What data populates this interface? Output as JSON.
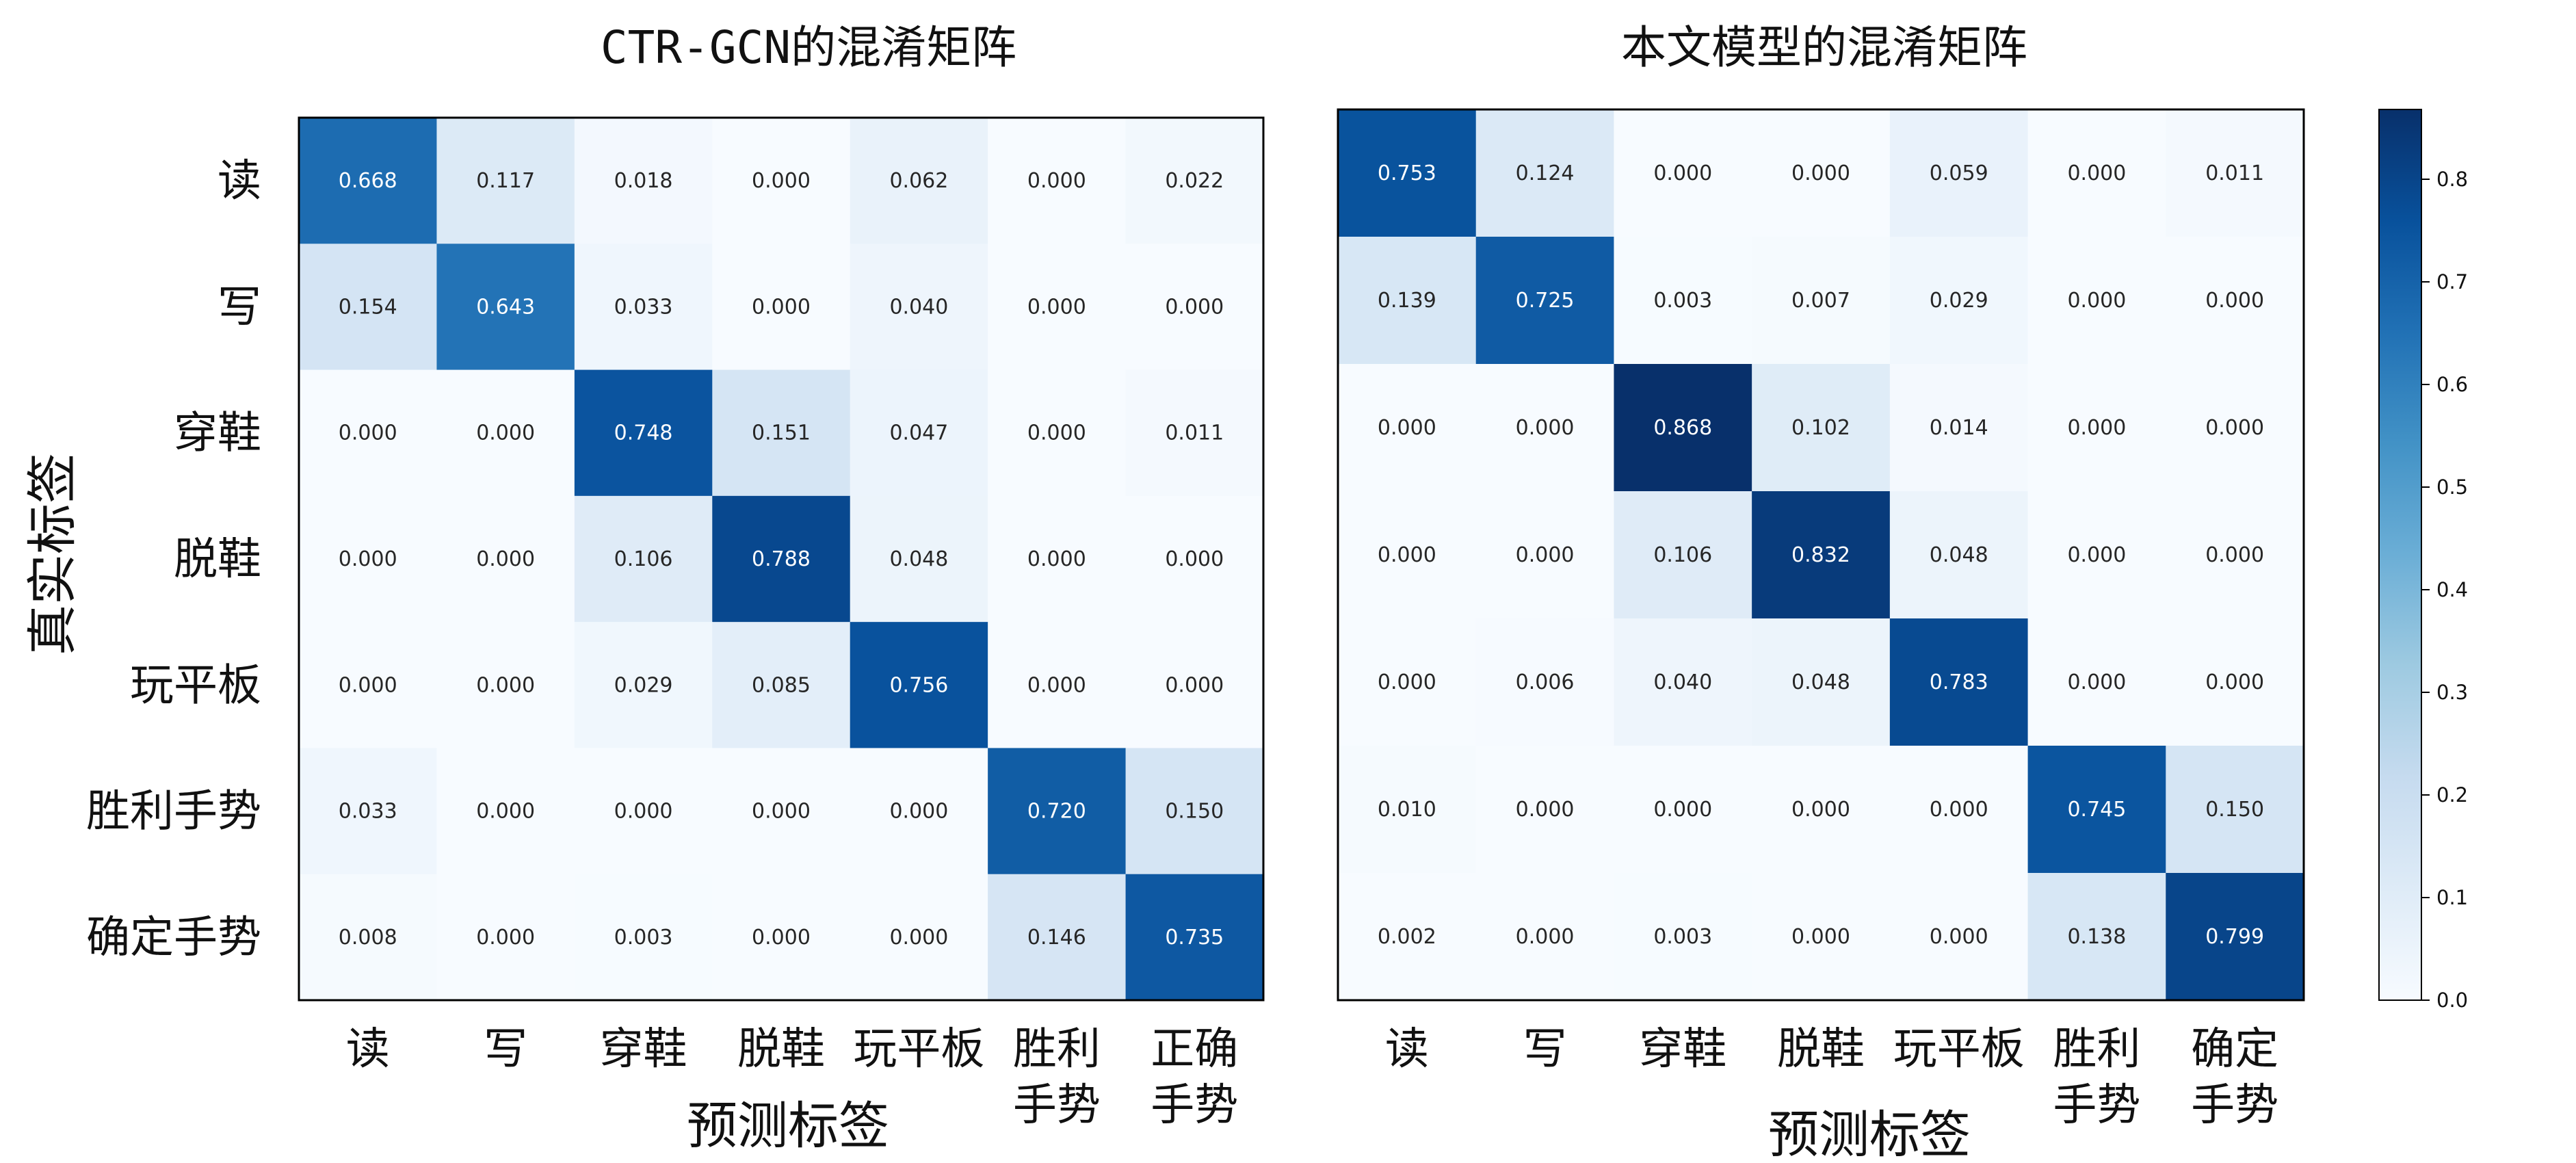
{
  "chart_data": [
    {
      "type": "heatmap",
      "title": "CTR-GCN的混淆矩阵",
      "xlabel": "预测标签",
      "ylabel": "真实标签",
      "x_tick_labels": [
        "读",
        "写",
        "穿鞋",
        "脱鞋",
        "玩平板",
        "胜利\n手势",
        "正确\n手势"
      ],
      "y_tick_labels": [
        "读",
        "写",
        "穿鞋",
        "脱鞋",
        "玩平板",
        "胜利手势",
        "确定手势"
      ],
      "matrix": [
        [
          "0.668",
          "0.117",
          "0.018",
          "0.000",
          "0.062",
          "0.000",
          "0.022"
        ],
        [
          "0.154",
          "0.643",
          "0.033",
          "0.000",
          "0.040",
          "0.000",
          "0.000"
        ],
        [
          "0.000",
          "0.000",
          "0.748",
          "0.151",
          "0.047",
          "0.000",
          "0.011"
        ],
        [
          "0.000",
          "0.000",
          "0.106",
          "0.788",
          "0.048",
          "0.000",
          "0.000"
        ],
        [
          "0.000",
          "0.000",
          "0.029",
          "0.085",
          "0.756",
          "0.000",
          "0.000"
        ],
        [
          "0.033",
          "0.000",
          "0.000",
          "0.000",
          "0.000",
          "0.720",
          "0.150"
        ],
        [
          "0.008",
          "0.000",
          "0.003",
          "0.000",
          "0.000",
          "0.146",
          "0.735"
        ]
      ]
    },
    {
      "type": "heatmap",
      "title": "本文模型的混淆矩阵",
      "xlabel": "预测标签",
      "ylabel": "",
      "x_tick_labels": [
        "读",
        "写",
        "穿鞋",
        "脱鞋",
        "玩平板",
        "胜利\n手势",
        "确定\n手势"
      ],
      "y_tick_labels": [],
      "matrix": [
        [
          "0.753",
          "0.124",
          "0.000",
          "0.000",
          "0.059",
          "0.000",
          "0.011"
        ],
        [
          "0.139",
          "0.725",
          "0.003",
          "0.007",
          "0.029",
          "0.000",
          "0.000"
        ],
        [
          "0.000",
          "0.000",
          "0.868",
          "0.102",
          "0.014",
          "0.000",
          "0.000"
        ],
        [
          "0.000",
          "0.000",
          "0.106",
          "0.832",
          "0.048",
          "0.000",
          "0.000"
        ],
        [
          "0.000",
          "0.006",
          "0.040",
          "0.048",
          "0.783",
          "0.000",
          "0.000"
        ],
        [
          "0.010",
          "0.000",
          "0.000",
          "0.000",
          "0.000",
          "0.745",
          "0.150"
        ],
        [
          "0.002",
          "0.000",
          "0.003",
          "0.000",
          "0.000",
          "0.138",
          "0.799"
        ]
      ]
    }
  ],
  "colorbar": {
    "colormap": "Blues",
    "vmin": 0.0,
    "vmax": 0.868,
    "ticks": [
      "0.0",
      "0.1",
      "0.2",
      "0.3",
      "0.4",
      "0.5",
      "0.6",
      "0.7",
      "0.8"
    ]
  },
  "colors": {
    "text_dark": "#262626",
    "text_light": "#ffffff"
  }
}
